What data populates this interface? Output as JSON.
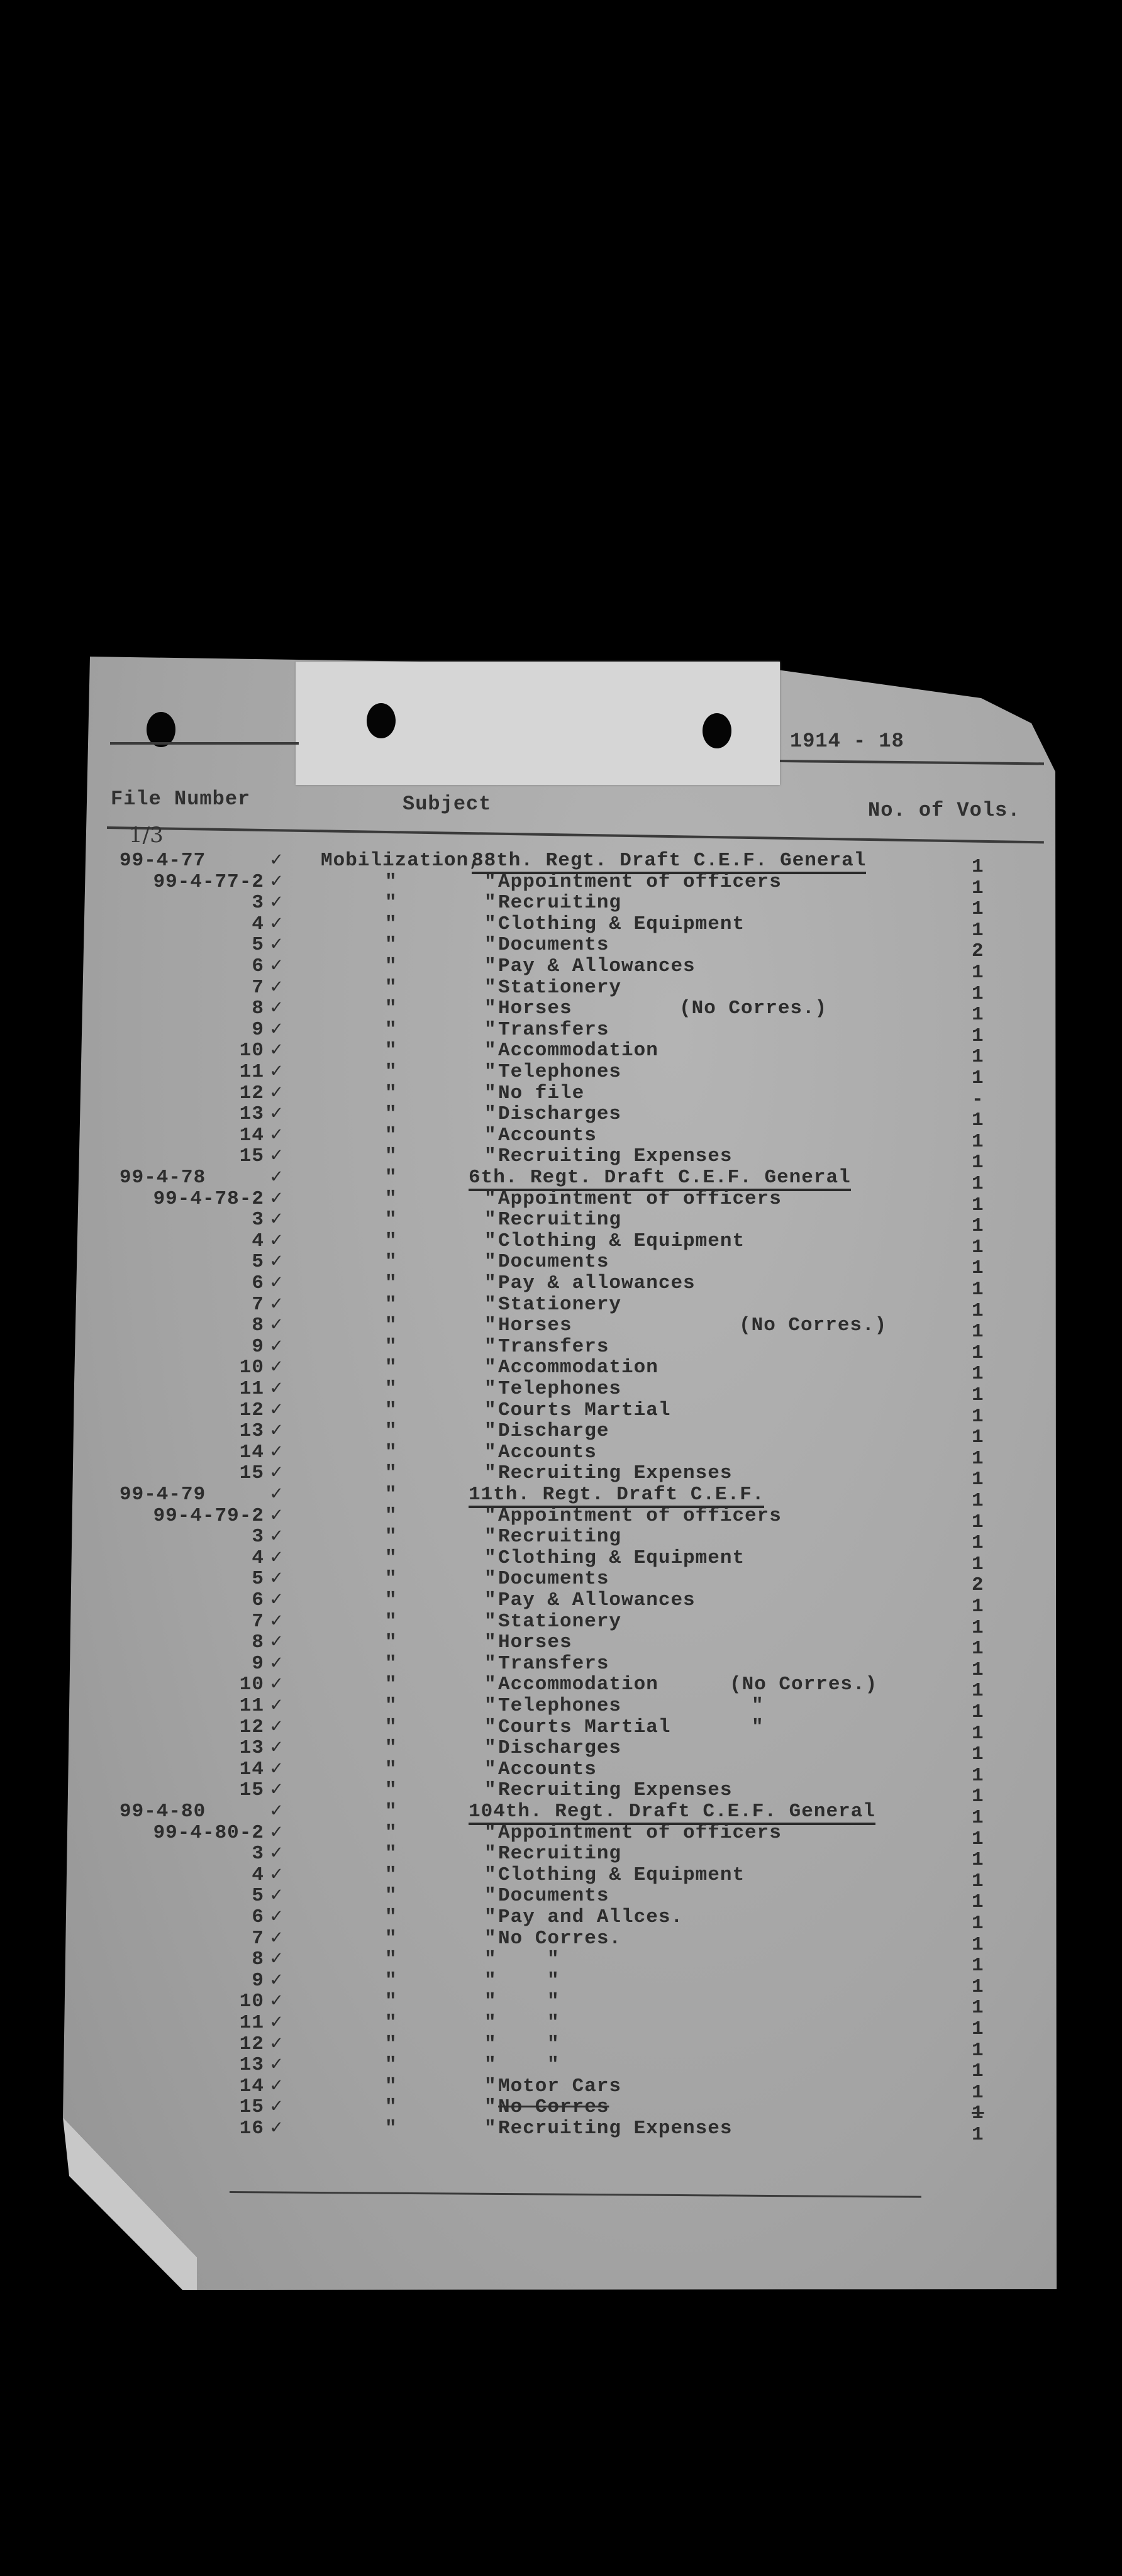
{
  "document": {
    "year_range": "1914 - 18",
    "handwritten_mark": "1/3",
    "columns": {
      "file_number": "File Number",
      "subject": "Subject",
      "volumes": "No. of Vols."
    },
    "subject_prefix": "Mobilization,",
    "ditto_mark": "\"",
    "check_icon": "checkmark-icon",
    "colors": {
      "background": "#000000",
      "paper": "#a9a9a9",
      "ink": "#2c2c2c"
    },
    "groups": [
      {
        "file": "99-4-77",
        "heading": "88th. Regt. Draft C.E.F. General",
        "vols": "1",
        "rows": [
          {
            "num": "99-4-77-2",
            "subject": "Appointment of officers",
            "vols": "1"
          },
          {
            "num": "3",
            "subject": "Recruiting",
            "vols": "1"
          },
          {
            "num": "4",
            "subject": "Clothing & Equipment",
            "vols": "1"
          },
          {
            "num": "5",
            "subject": "Documents",
            "vols": "2"
          },
          {
            "num": "6",
            "subject": "Pay & Allowances",
            "vols": "1"
          },
          {
            "num": "7",
            "subject": "Stationery",
            "vols": "1"
          },
          {
            "num": "8",
            "subject": "Horses",
            "note": "(No Corres.)",
            "vols": "1"
          },
          {
            "num": "9",
            "subject": "Transfers",
            "vols": "1"
          },
          {
            "num": "10",
            "subject": "Accommodation",
            "vols": "1"
          },
          {
            "num": "11",
            "subject": "Telephones",
            "vols": "1"
          },
          {
            "num": "12",
            "subject": "No file",
            "vols": "-"
          },
          {
            "num": "13",
            "subject": "Discharges",
            "vols": "1"
          },
          {
            "num": "14",
            "subject": "Accounts",
            "vols": "1"
          },
          {
            "num": "15",
            "subject": "Recruiting Expenses",
            "vols": "1"
          }
        ]
      },
      {
        "file": "99-4-78",
        "heading": "6th. Regt. Draft C.E.F. General",
        "vols": "1",
        "rows": [
          {
            "num": "99-4-78-2",
            "subject": "Appointment of officers",
            "vols": "1"
          },
          {
            "num": "3",
            "subject": "Recruiting",
            "vols": "1"
          },
          {
            "num": "4",
            "subject": "Clothing & Equipment",
            "vols": "1"
          },
          {
            "num": "5",
            "subject": "Documents",
            "vols": "1"
          },
          {
            "num": "6",
            "subject": "Pay & allowances",
            "vols": "1"
          },
          {
            "num": "7",
            "subject": "Stationery",
            "vols": "1"
          },
          {
            "num": "8",
            "subject": "Horses",
            "note": "(No Corres.)",
            "vols": "1"
          },
          {
            "num": "9",
            "subject": "Transfers",
            "vols": "1"
          },
          {
            "num": "10",
            "subject": "Accommodation",
            "vols": "1"
          },
          {
            "num": "11",
            "subject": "Telephones",
            "vols": "1"
          },
          {
            "num": "12",
            "subject": "Courts Martial",
            "vols": "1"
          },
          {
            "num": "13",
            "subject": "Discharge",
            "vols": "1"
          },
          {
            "num": "14",
            "subject": "Accounts",
            "vols": "1"
          },
          {
            "num": "15",
            "subject": "Recruiting Expenses",
            "vols": "1"
          }
        ]
      },
      {
        "file": "99-4-79",
        "heading": "11th. Regt. Draft C.E.F.",
        "vols": "1",
        "rows": [
          {
            "num": "99-4-79-2",
            "subject": "Appointment of officers",
            "vols": "1"
          },
          {
            "num": "3",
            "subject": "Recruiting",
            "vols": "1"
          },
          {
            "num": "4",
            "subject": "Clothing & Equipment",
            "vols": "1"
          },
          {
            "num": "5",
            "subject": "Documents",
            "vols": "2"
          },
          {
            "num": "6",
            "subject": "Pay & Allowances",
            "vols": "1"
          },
          {
            "num": "7",
            "subject": "Stationery",
            "vols": "1"
          },
          {
            "num": "8",
            "subject": "Horses",
            "vols": "1"
          },
          {
            "num": "9",
            "subject": "Transfers",
            "vols": "1"
          },
          {
            "num": "10",
            "subject": "Accommodation",
            "note": "(No Corres.)",
            "vols": "1"
          },
          {
            "num": "11",
            "subject": "Telephones",
            "note": "\"",
            "vols": "1"
          },
          {
            "num": "12",
            "subject": "Courts Martial",
            "note": "\"",
            "vols": "1"
          },
          {
            "num": "13",
            "subject": "Discharges",
            "vols": "1"
          },
          {
            "num": "14",
            "subject": "Accounts",
            "vols": "1"
          },
          {
            "num": "15",
            "subject": "Recruiting Expenses",
            "vols": "1"
          }
        ]
      },
      {
        "file": "99-4-80",
        "heading": "104th. Regt. Draft C.E.F. General",
        "vols": "1",
        "rows": [
          {
            "num": "99-4-80-2",
            "subject": "Appointment of officers",
            "vols": "1"
          },
          {
            "num": "3",
            "subject": "Recruiting",
            "vols": "1"
          },
          {
            "num": "4",
            "subject": "Clothing & Equipment",
            "vols": "1"
          },
          {
            "num": "5",
            "subject": "Documents",
            "vols": "1"
          },
          {
            "num": "6",
            "subject": "Pay and Allces.",
            "vols": "1"
          },
          {
            "num": "7",
            "subject": "No Corres.",
            "vols": "1"
          },
          {
            "num": "8",
            "subject": "",
            "ditto2": true,
            "vols": "1"
          },
          {
            "num": "9",
            "subject": "",
            "ditto2": true,
            "vols": "1"
          },
          {
            "num": "10",
            "subject": "",
            "ditto2": true,
            "vols": "1"
          },
          {
            "num": "11",
            "subject": "",
            "ditto2": true,
            "vols": "1"
          },
          {
            "num": "12",
            "subject": "",
            "ditto2": true,
            "vols": "1"
          },
          {
            "num": "13",
            "subject": "",
            "ditto2": true,
            "vols": "1"
          },
          {
            "num": "14",
            "subject": "Motor Cars",
            "vols": "1"
          },
          {
            "num": "15",
            "subject": "No Corres",
            "struck": true,
            "vols": "1"
          },
          {
            "num": "16",
            "subject": "Recruiting Expenses",
            "vols": "1"
          }
        ]
      }
    ]
  }
}
